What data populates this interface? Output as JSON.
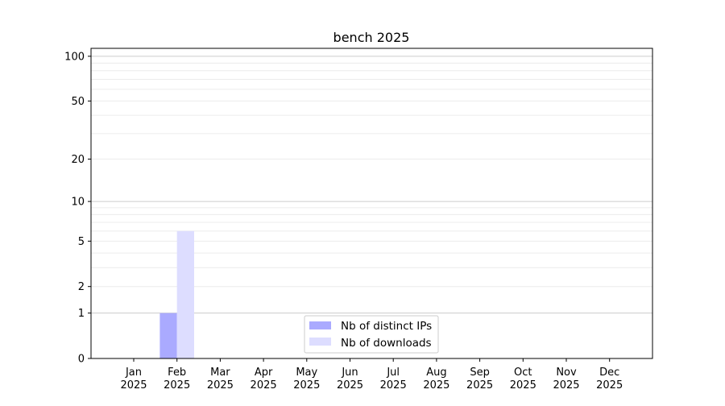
{
  "chart_data": {
    "type": "bar",
    "title": "bench 2025",
    "xlabel": "",
    "ylabel": "",
    "yscale": "log(1+y)",
    "ylim": [
      0,
      113
    ],
    "grid": true,
    "legend_placement": "lower-center",
    "categories": [
      {
        "month": "Jan",
        "year": "2025"
      },
      {
        "month": "Feb",
        "year": "2025"
      },
      {
        "month": "Mar",
        "year": "2025"
      },
      {
        "month": "Apr",
        "year": "2025"
      },
      {
        "month": "May",
        "year": "2025"
      },
      {
        "month": "Jun",
        "year": "2025"
      },
      {
        "month": "Jul",
        "year": "2025"
      },
      {
        "month": "Aug",
        "year": "2025"
      },
      {
        "month": "Sep",
        "year": "2025"
      },
      {
        "month": "Oct",
        "year": "2025"
      },
      {
        "month": "Nov",
        "year": "2025"
      },
      {
        "month": "Dec",
        "year": "2025"
      }
    ],
    "yticks": [
      "0",
      "1",
      "2",
      "5",
      "10",
      "20",
      "50",
      "100"
    ],
    "series": [
      {
        "name": "Nb of distinct IPs",
        "color": "#aaaaff",
        "values": [
          0,
          1,
          0,
          0,
          0,
          0,
          0,
          0,
          0,
          0,
          0,
          0
        ]
      },
      {
        "name": "Nb of downloads",
        "color": "#ddddff",
        "values": [
          0,
          6,
          0,
          0,
          0,
          0,
          0,
          0,
          0,
          0,
          0,
          0
        ]
      }
    ]
  }
}
